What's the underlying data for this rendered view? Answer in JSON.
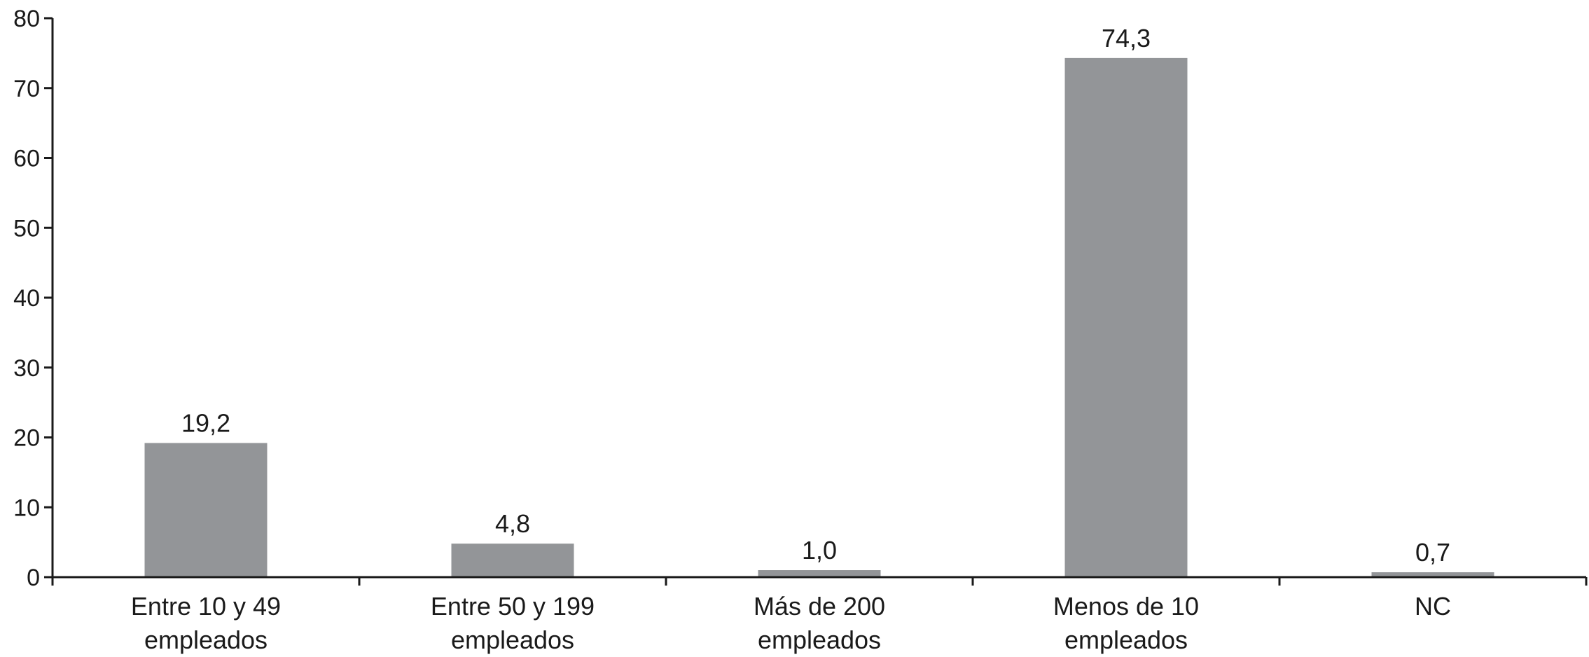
{
  "chart_data": {
    "type": "bar",
    "categories": [
      [
        "Entre 10 y 49",
        "empleados"
      ],
      [
        "Entre 50 y 199",
        "empleados"
      ],
      [
        "Más de 200",
        "empleados"
      ],
      [
        "Menos de 10",
        "empleados"
      ],
      [
        "NC"
      ]
    ],
    "values": [
      19.2,
      4.8,
      1.0,
      74.3,
      0.7
    ],
    "value_labels": [
      "19,2",
      "4,8",
      "1,0",
      "74,3",
      "0,7"
    ],
    "title": "",
    "xlabel": "",
    "ylabel": "",
    "ylim": [
      0,
      80
    ],
    "yticks": [
      0,
      10,
      20,
      30,
      40,
      50,
      60,
      70,
      80
    ],
    "grid": false,
    "legend": "none",
    "colors": {
      "bar": "#939598",
      "axis": "#1a1a1a",
      "text": "#1a1a1a"
    }
  }
}
